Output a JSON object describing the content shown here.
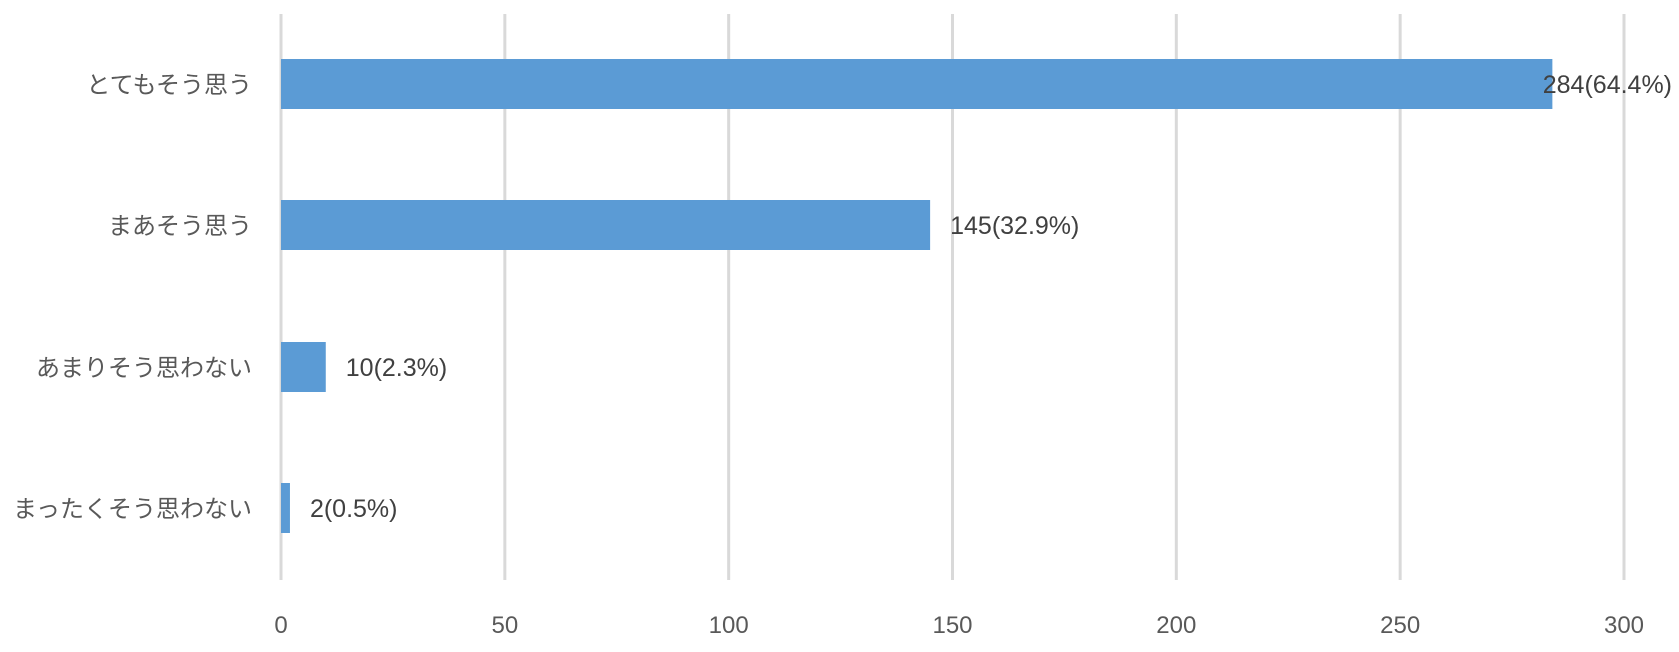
{
  "chart_data": {
    "type": "bar",
    "orientation": "horizontal",
    "categories": [
      "とてもそう思う",
      "まあそう思う",
      "あまりそう思わない",
      "まったくそう思わない"
    ],
    "values": [
      284,
      145,
      10,
      2
    ],
    "data_labels": [
      "284(64.4%)",
      "145(32.9%)",
      "10(2.3%)",
      "2(0.5%)"
    ],
    "xlim": [
      0,
      300
    ],
    "x_ticks": [
      "0",
      "50",
      "100",
      "150",
      "200",
      "250",
      "300"
    ],
    "grid": true,
    "legend": "none",
    "bar_color": "#5b9bd5"
  }
}
